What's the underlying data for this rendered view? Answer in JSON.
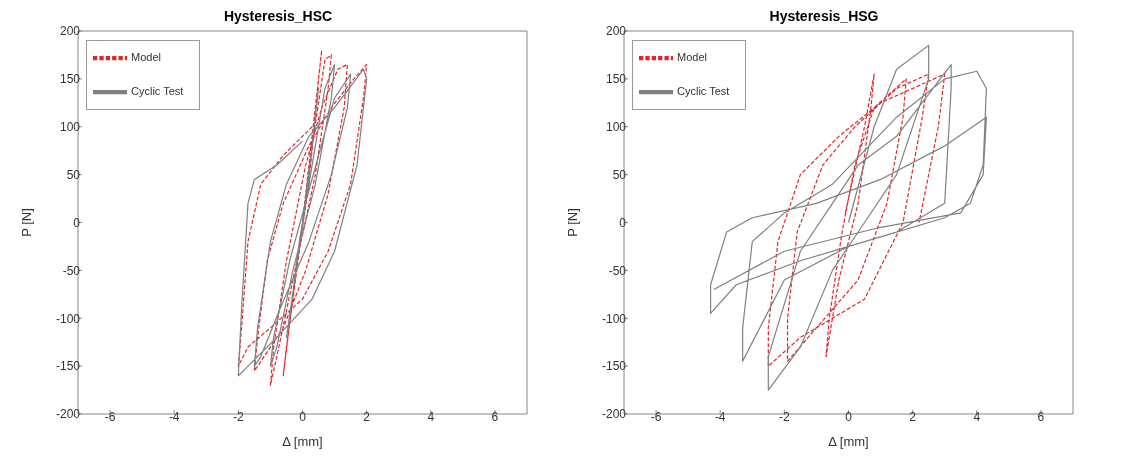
{
  "chart_data": [
    {
      "type": "line",
      "title": "Hysteresis_HSC",
      "xlabel": "Δ [mm]",
      "ylabel": "P [N]",
      "xlim": [
        -7,
        7
      ],
      "xticks": [
        -6,
        -4,
        -2,
        0,
        2,
        4,
        6
      ],
      "ylim": [
        -200,
        200
      ],
      "yticks": [
        -200,
        -150,
        -100,
        -50,
        0,
        50,
        100,
        150,
        200
      ],
      "grid": false,
      "legend": "top left",
      "marker": "none",
      "series": [
        {
          "name": "Model",
          "color": "#e0262b",
          "line_style": "dashed",
          "x": [
            0,
            0.3,
            0.6,
            0.5,
            0.2,
            -0.2,
            -0.6,
            -0.5,
            -0.1,
            0.3,
            0.7,
            0.9,
            0.8,
            0.4,
            -0.3,
            -0.8,
            -1.0,
            -0.9,
            -0.5,
            0.1,
            0.6,
            1.1,
            1.4,
            1.3,
            0.8,
            0.1,
            -0.6,
            -1.2,
            -1.5,
            -1.4,
            -1.1,
            -0.6,
            0.2,
            0.9,
            1.6,
            2.0,
            1.9,
            1.5,
            0.8,
            0,
            -1.0,
            -1.7,
            -2.0,
            -1.9,
            -1.7,
            -1.3,
            -0.6,
            0.3
          ],
          "values": [
            0,
            90,
            180,
            150,
            40,
            -50,
            -160,
            -130,
            -30,
            80,
            170,
            175,
            140,
            50,
            -60,
            -140,
            -170,
            -130,
            -40,
            60,
            120,
            160,
            165,
            120,
            30,
            -50,
            -110,
            -140,
            -155,
            -120,
            -40,
            20,
            80,
            120,
            150,
            165,
            130,
            40,
            -30,
            -80,
            -110,
            -130,
            -150,
            -110,
            -20,
            40,
            70,
            100
          ]
        },
        {
          "name": "Cyclic Test",
          "color": "#808080",
          "line_style": "solid",
          "x": [
            0,
            0.3,
            0.5,
            0.4,
            0.1,
            -0.2,
            -0.5,
            -0.4,
            -0.1,
            0.3,
            0.7,
            1.0,
            0.9,
            0.4,
            -0.3,
            -0.8,
            -1.0,
            -0.9,
            -0.4,
            0.5,
            1.0,
            1.5,
            1.4,
            0.9,
            0.2,
            -0.7,
            -1.3,
            -1.5,
            -1.4,
            -1.0,
            -0.5,
            0.2,
            1.0,
            1.9,
            2.0,
            1.7,
            1.0,
            0.3,
            -0.8,
            -1.7,
            -2.0,
            -1.9,
            -1.7,
            -1.5,
            -0.8,
            0
          ],
          "values": [
            0,
            80,
            140,
            110,
            20,
            -50,
            -120,
            -100,
            -20,
            60,
            140,
            165,
            130,
            40,
            -50,
            -130,
            -150,
            -120,
            -40,
            70,
            130,
            155,
            120,
            50,
            -20,
            -90,
            -140,
            -150,
            -110,
            -20,
            40,
            90,
            120,
            160,
            150,
            60,
            -30,
            -80,
            -120,
            -150,
            -160,
            -90,
            20,
            45,
            60,
            85
          ]
        }
      ]
    },
    {
      "type": "line",
      "title": "Hysteresis_HSG",
      "xlabel": "Δ [mm]",
      "ylabel": "P [N]",
      "xlim": [
        -7,
        7
      ],
      "xticks": [
        -6,
        -4,
        -2,
        0,
        2,
        4,
        6
      ],
      "ylim": [
        -200,
        200
      ],
      "yticks": [
        -200,
        -150,
        -100,
        -50,
        0,
        50,
        100,
        150,
        200
      ],
      "grid": false,
      "legend": "top left",
      "marker": "none",
      "series": [
        {
          "name": "Model",
          "color": "#e0262b",
          "line_style": "dashed",
          "x": [
            -0.1,
            0.5,
            0.8,
            0.7,
            0.3,
            -0.3,
            -0.7,
            -0.6,
            -0.2,
            0.2,
            0.8,
            1.8,
            1.7,
            1.2,
            0.3,
            -1.0,
            -1.9,
            -1.9,
            -1.6,
            -0.8,
            0.2,
            1.5,
            2.5,
            2.3,
            1.7,
            0.5,
            -1.5,
            -2.5,
            -2.5,
            -2.2,
            -1.5,
            -0.3,
            1.0,
            3.0,
            2.8,
            2.2
          ],
          "values": [
            10,
            100,
            155,
            120,
            20,
            -60,
            -140,
            -100,
            -10,
            60,
            120,
            150,
            110,
            20,
            -60,
            -110,
            -145,
            -100,
            -10,
            60,
            100,
            140,
            155,
            110,
            0,
            -80,
            -120,
            -150,
            -110,
            -20,
            50,
            90,
            125,
            155,
            100,
            0
          ]
        },
        {
          "name": "Cyclic Test",
          "color": "#808080",
          "line_style": "solid",
          "x": [
            0,
            0.8,
            1.5,
            2.5,
            2.5,
            1.5,
            0.5,
            -0.5,
            -1.5,
            -2.5,
            -2.5,
            -1.5,
            -0.5,
            0.3,
            1.5,
            3.2,
            3.2,
            3.0,
            1.5,
            0,
            -2.0,
            -3.3,
            -3.3,
            -3.0,
            -2.0,
            -0.5,
            1.5,
            3.0,
            4.0,
            4.3,
            4.2,
            3.8,
            3.0,
            1.0,
            -1.5,
            -3.5,
            -4.3,
            -4.3,
            -3.8,
            -3.0,
            -1.0,
            1.0,
            3.0,
            4.3,
            4.2,
            3.5,
            1.0,
            -2.0,
            -4.2
          ],
          "values": [
            0,
            100,
            160,
            185,
            150,
            50,
            0,
            -50,
            -130,
            -175,
            -140,
            -30,
            20,
            60,
            90,
            165,
            140,
            20,
            -10,
            -25,
            -60,
            -145,
            -110,
            -20,
            10,
            40,
            110,
            150,
            158,
            140,
            60,
            20,
            5,
            -15,
            -40,
            -65,
            -95,
            -65,
            -10,
            5,
            20,
            45,
            80,
            110,
            50,
            10,
            -5,
            -30,
            -70
          ]
        }
      ]
    }
  ]
}
